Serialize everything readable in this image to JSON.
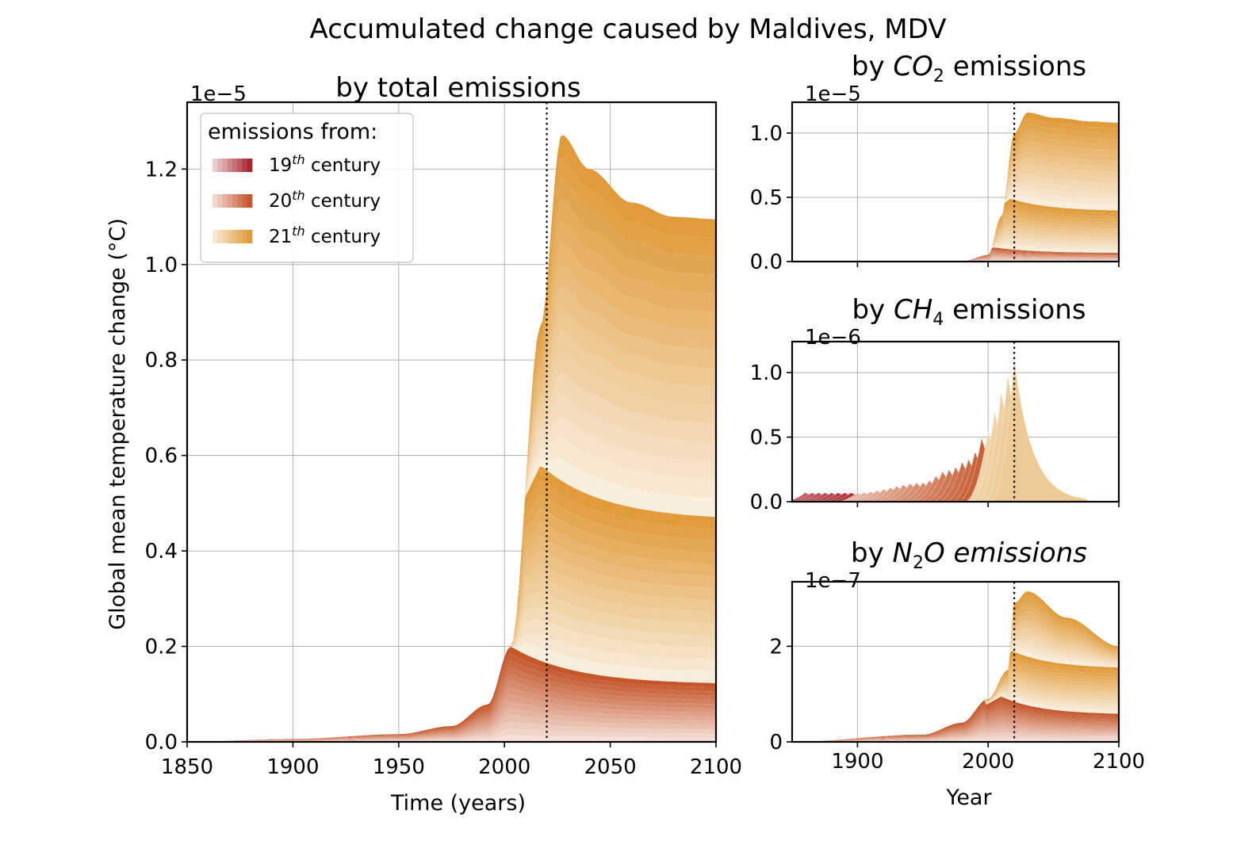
{
  "figure": {
    "suptitle": "Accumulated change caused by Maldives, MDV",
    "reference_year": 2020,
    "colors": {
      "c19": "#a8262e",
      "c20": "#c4562a",
      "c21": "#e09b3a",
      "grid": "#b0b0b0",
      "axis": "#000000"
    }
  },
  "legend": {
    "title": "emissions from:",
    "entries": [
      {
        "prefix": "19",
        "sup": "th",
        "suffix": " century",
        "color": "#a8262e"
      },
      {
        "prefix": "20",
        "sup": "th",
        "suffix": " century",
        "color": "#c4562a"
      },
      {
        "prefix": "21",
        "sup": "th",
        "suffix": " century",
        "color": "#e09b3a"
      }
    ]
  },
  "chart_data": [
    {
      "id": "total",
      "type": "area",
      "title": "by total emissions",
      "xlabel": "Time (years)",
      "ylabel": "Global mean temperature change (°C)",
      "offset_text": "1e−5",
      "xlim": [
        1850,
        2100
      ],
      "ylim": [
        0,
        1.34
      ],
      "xticks": [
        1850,
        1900,
        1950,
        2000,
        2050,
        2100
      ],
      "yticks": [
        0.0,
        0.2,
        0.4,
        0.6,
        0.8,
        1.0,
        1.2
      ],
      "ytick_labels": [
        "0.0",
        "0.2",
        "0.4",
        "0.6",
        "0.8",
        "1.0",
        "1.2"
      ],
      "grid": true,
      "legend": "upper-left",
      "series": [
        {
          "name": "19th century",
          "x": [
            1850,
            1880,
            1900,
            1950,
            2000,
            2020,
            2050,
            2100
          ],
          "values": [
            0.0,
            0.006,
            0.006,
            0.003,
            0.002,
            0.001,
            0.001,
            0.001
          ]
        },
        {
          "name": "20th century",
          "x": [
            1850,
            1900,
            1950,
            1975,
            1992,
            2003,
            2020,
            2050,
            2100
          ],
          "values": [
            0.0,
            0.0,
            0.01,
            0.03,
            0.075,
            0.195,
            0.155,
            0.125,
            0.12
          ]
        },
        {
          "name": "21st century",
          "x": [
            1850,
            1995,
            2000,
            2010,
            2020,
            2027,
            2040,
            2060,
            2080,
            2100
          ],
          "values": [
            0.0,
            0.0,
            0.003,
            0.35,
            1.2,
            1.27,
            1.2,
            1.13,
            1.1,
            1.095
          ]
        }
      ],
      "envelope": {
        "x": [
          1850,
          1900,
          1950,
          1975,
          1992,
          2003,
          2017,
          2027,
          2040,
          2060,
          2080,
          2100
        ],
        "values": [
          0.0,
          0.006,
          0.016,
          0.033,
          0.078,
          0.2,
          0.87,
          1.272,
          1.2,
          1.13,
          1.1,
          1.095
        ]
      },
      "inner_peaks": [
        {
          "x": 2003,
          "value": 0.2
        },
        {
          "x": 2017,
          "value": 0.58
        }
      ]
    },
    {
      "id": "co2",
      "type": "area",
      "title_prefix": "by ",
      "title_gas": "CO",
      "title_sub": "2",
      "title_suffix": " emissions",
      "offset_text": "1e−5",
      "xlim": [
        1850,
        2100
      ],
      "ylim": [
        0,
        1.24
      ],
      "xticks": [
        1900,
        2000,
        2100
      ],
      "yticks": [
        0.0,
        0.5,
        1.0
      ],
      "ytick_labels": [
        "0.0",
        "0.5",
        "1.0"
      ],
      "grid": true,
      "envelope": {
        "x": [
          1850,
          1980,
          2000,
          2010,
          2020,
          2030,
          2050,
          2080,
          2100
        ],
        "values": [
          0.0,
          0.0,
          0.05,
          0.35,
          1.0,
          1.16,
          1.12,
          1.09,
          1.08
        ]
      },
      "inner_peaks": [
        {
          "x": 2005,
          "value": 0.11
        },
        {
          "x": 2017,
          "value": 0.49
        }
      ]
    },
    {
      "id": "ch4",
      "type": "area",
      "title_prefix": "by ",
      "title_gas": "CH",
      "title_sub": "4",
      "title_suffix": " emissions",
      "offset_text": "1e−6",
      "xlim": [
        1850,
        2100
      ],
      "ylim": [
        0,
        1.24
      ],
      "xticks": [
        1900,
        2000,
        2100
      ],
      "yticks": [
        0.0,
        0.5,
        1.0
      ],
      "ytick_labels": [
        "0.0",
        "0.5",
        "1.0"
      ],
      "grid": true,
      "peaks": [
        {
          "x": 1900,
          "value": 0.07
        },
        {
          "x": 1950,
          "value": 0.15
        },
        {
          "x": 1970,
          "value": 0.25
        },
        {
          "x": 1985,
          "value": 0.33
        },
        {
          "x": 2000,
          "value": 0.55
        },
        {
          "x": 2005,
          "value": 0.7
        },
        {
          "x": 2013,
          "value": 0.92
        },
        {
          "x": 2018,
          "value": 1.1
        }
      ]
    },
    {
      "id": "n2o",
      "type": "area",
      "title_prefix": "by ",
      "title_gas": "N",
      "title_sub": "2",
      "title_suffix": "O emissions",
      "offset_text": "1e−7",
      "xlabel": "Year",
      "xlim": [
        1850,
        2100
      ],
      "ylim": [
        0,
        3.35
      ],
      "xticks": [
        1900,
        2000,
        2100
      ],
      "yticks": [
        0,
        2
      ],
      "ytick_labels": [
        "0",
        "2"
      ],
      "grid": true,
      "envelope": {
        "x": [
          1850,
          1950,
          1980,
          2000,
          2015,
          2020,
          2030,
          2060,
          2100
        ],
        "values": [
          0.0,
          0.15,
          0.4,
          0.9,
          1.5,
          2.9,
          3.15,
          2.6,
          2.0
        ]
      },
      "inner_peaks": [
        {
          "x": 2010,
          "value": 0.95
        },
        {
          "x": 2017,
          "value": 1.92
        }
      ]
    }
  ]
}
